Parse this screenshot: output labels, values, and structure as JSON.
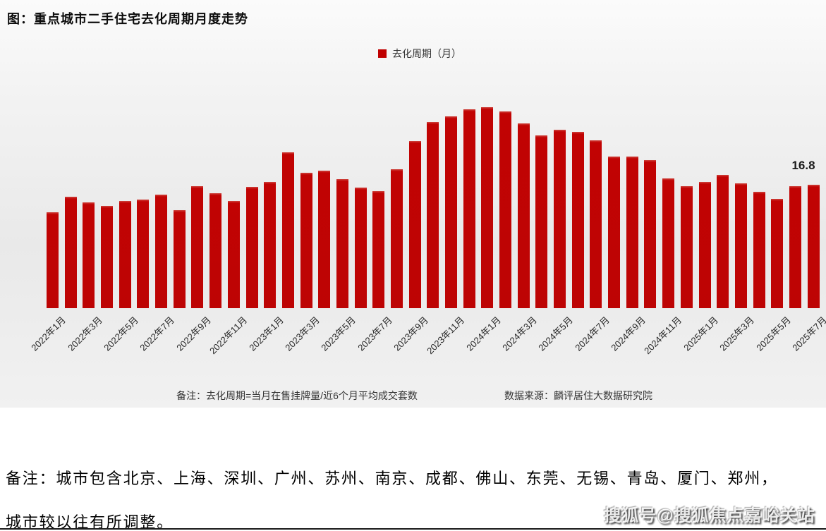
{
  "title": "图：重点城市二手住宅去化周期月度走势",
  "legend": {
    "label": "去化周期（月）",
    "color": "#C00000"
  },
  "chart_data": {
    "type": "bar",
    "title": "重点城市二手住宅去化周期月度走势",
    "series_name": "去化周期（月）",
    "bar_color": "#C00000",
    "grid": false,
    "legend_position": "top-center",
    "ylim": [
      0,
      28
    ],
    "last_point_label": "16.8",
    "categories": [
      "2022年1月",
      "2022年2月",
      "2022年3月",
      "2022年4月",
      "2022年5月",
      "2022年6月",
      "2022年7月",
      "2022年8月",
      "2022年9月",
      "2022年10月",
      "2022年11月",
      "2022年12月",
      "2023年1月",
      "2023年2月",
      "2023年3月",
      "2023年4月",
      "2023年5月",
      "2023年6月",
      "2023年7月",
      "2023年8月",
      "2023年9月",
      "2023年10月",
      "2023年11月",
      "2023年12月",
      "2024年1月",
      "2024年2月",
      "2024年3月",
      "2024年4月",
      "2024年5月",
      "2024年6月",
      "2024年7月",
      "2024年8月",
      "2024年9月",
      "2024年10月",
      "2024年11月",
      "2024年12月",
      "2025年1月",
      "2025年2月",
      "2025年3月",
      "2025年4月",
      "2025年5月",
      "2025年6月",
      "2025年7月"
    ],
    "values": [
      13.0,
      15.1,
      14.4,
      13.9,
      14.6,
      14.8,
      15.4,
      13.3,
      16.6,
      15.6,
      14.6,
      16.5,
      17.2,
      21.2,
      18.4,
      18.7,
      17.5,
      16.4,
      15.9,
      18.9,
      22.7,
      25.3,
      26.1,
      27.0,
      27.3,
      26.7,
      25.1,
      23.5,
      24.2,
      24.0,
      22.8,
      20.6,
      20.6,
      20.1,
      17.6,
      16.6,
      17.2,
      18.1,
      17.0,
      15.8,
      14.9,
      16.6,
      16.8
    ],
    "x_tick_labels": [
      "2022年1月",
      "2022年3月",
      "2022年5月",
      "2022年7月",
      "2022年9月",
      "2022年11月",
      "2023年1月",
      "2023年3月",
      "2023年5月",
      "2023年7月",
      "2023年9月",
      "2023年11月",
      "2024年1月",
      "2024年3月",
      "2024年5月",
      "2024年7月",
      "2024年9月",
      "2024年11月",
      "2025年1月",
      "2025年3月",
      "2025年5月",
      "2025年7月"
    ]
  },
  "footnotes": {
    "note": "备注：去化周期=当月在售挂牌量/近6个月平均成交套数",
    "source": "数据来源：麟评居住大数据研究院"
  },
  "bottom_note": {
    "line1": "备注：城市包含北京、上海、深圳、广州、苏州、南京、成都、佛山、东莞、无锡、青岛、厦门、郑州，",
    "line2": "城市较以往有所调整。"
  },
  "watermark": "搜狐号@搜狐焦点嘉峪关站"
}
